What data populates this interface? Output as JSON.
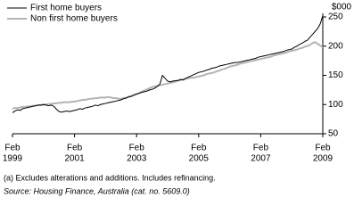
{
  "chart_data": {
    "type": "line",
    "y_unit": "$000",
    "footnote": "(a) Excludes alterations and additions. Includes refinancing.",
    "source": "Source: Housing Finance, Australia (cat. no. 5609.0)",
    "categories": [
      "Feb 1999",
      "Mar 1999",
      "Apr 1999",
      "May 1999",
      "Jun 1999",
      "Jul 1999",
      "Aug 1999",
      "Sep 1999",
      "Oct 1999",
      "Nov 1999",
      "Dec 1999",
      "Jan 2000",
      "Feb 2000",
      "Mar 2000",
      "Apr 2000",
      "May 2000",
      "Jun 2000",
      "Jul 2000",
      "Aug 2000",
      "Sep 2000",
      "Oct 2000",
      "Nov 2000",
      "Dec 2000",
      "Jan 2001",
      "Feb 2001",
      "Mar 2001",
      "Apr 2001",
      "May 2001",
      "Jun 2001",
      "Jul 2001",
      "Aug 2001",
      "Sep 2001",
      "Oct 2001",
      "Nov 2001",
      "Dec 2001",
      "Jan 2002",
      "Feb 2002",
      "Mar 2002",
      "Apr 2002",
      "May 2002",
      "Jun 2002",
      "Jul 2002",
      "Aug 2002",
      "Sep 2002",
      "Oct 2002",
      "Nov 2002",
      "Dec 2002",
      "Jan 2003",
      "Feb 2003",
      "Mar 2003",
      "Apr 2003",
      "May 2003",
      "Jun 2003",
      "Jul 2003",
      "Aug 2003",
      "Sep 2003",
      "Oct 2003",
      "Nov 2003",
      "Dec 2003",
      "Jan 2004",
      "Feb 2004",
      "Mar 2004",
      "Apr 2004",
      "May 2004",
      "Jun 2004",
      "Jul 2004",
      "Aug 2004",
      "Sep 2004",
      "Oct 2004",
      "Nov 2004",
      "Dec 2004",
      "Jan 2005",
      "Feb 2005",
      "Mar 2005",
      "Apr 2005",
      "May 2005",
      "Jun 2005",
      "Jul 2005",
      "Aug 2005",
      "Sep 2005",
      "Oct 2005",
      "Nov 2005",
      "Dec 2005",
      "Jan 2006",
      "Feb 2006",
      "Mar 2006",
      "Apr 2006",
      "May 2006",
      "Jun 2006",
      "Jul 2006",
      "Aug 2006",
      "Sep 2006",
      "Oct 2006",
      "Nov 2006",
      "Dec 2006",
      "Jan 2007",
      "Feb 2007",
      "Mar 2007",
      "Apr 2007",
      "May 2007",
      "Jun 2007",
      "Jul 2007",
      "Aug 2007",
      "Sep 2007",
      "Oct 2007",
      "Nov 2007",
      "Dec 2007",
      "Jan 2008",
      "Feb 2008",
      "Mar 2008",
      "Apr 2008",
      "May 2008",
      "Jun 2008",
      "Jul 2008",
      "Aug 2008",
      "Sep 2008",
      "Oct 2008",
      "Nov 2008",
      "Dec 2008",
      "Jan 2009",
      "Feb 2009"
    ],
    "xticks": [
      {
        "value": "Feb 1999",
        "label": [
          "Feb",
          "1999"
        ]
      },
      {
        "value": "Feb 2001",
        "label": [
          "Feb",
          "2001"
        ]
      },
      {
        "value": "Feb 2003",
        "label": [
          "Feb",
          "2003"
        ]
      },
      {
        "value": "Feb 2005",
        "label": [
          "Feb",
          "2005"
        ]
      },
      {
        "value": "Feb 2007",
        "label": [
          "Feb",
          "2007"
        ]
      },
      {
        "value": "Feb 2009",
        "label": [
          "Feb",
          "2009"
        ]
      }
    ],
    "series": [
      {
        "name": "First home buyers",
        "color": "#000000",
        "width": 1,
        "values": [
          86,
          89,
          91,
          90,
          93,
          94,
          95,
          96,
          97,
          98,
          99,
          99,
          100,
          99,
          98,
          99,
          97,
          92,
          88,
          87,
          88,
          89,
          88,
          89,
          90,
          91,
          93,
          92,
          94,
          95,
          96,
          97,
          99,
          98,
          100,
          101,
          102,
          103,
          104,
          105,
          106,
          107,
          108,
          110,
          111,
          113,
          114,
          116,
          118,
          119,
          121,
          122,
          123,
          125,
          126,
          128,
          131,
          135,
          150,
          145,
          140,
          139,
          140,
          141,
          141,
          143,
          142,
          145,
          147,
          149,
          151,
          153,
          155,
          156,
          157,
          159,
          160,
          162,
          163,
          164,
          166,
          167,
          168,
          169,
          170,
          171,
          172,
          172,
          173,
          174,
          175,
          176,
          177,
          178,
          179,
          181,
          182,
          183,
          184,
          185,
          186,
          187,
          188,
          189,
          190,
          191,
          193,
          194,
          195,
          198,
          200,
          203,
          205,
          208,
          210,
          215,
          220,
          225,
          230,
          238,
          252
        ]
      },
      {
        "name": "Non first home buyers",
        "color": "#b4b4b4",
        "width": 2,
        "values": [
          93,
          94,
          94,
          95,
          96,
          96,
          97,
          97,
          98,
          98,
          99,
          99,
          100,
          100,
          101,
          101,
          102,
          102,
          103,
          103,
          104,
          104,
          104,
          105,
          105,
          106,
          107,
          108,
          108,
          109,
          110,
          110,
          111,
          111,
          112,
          112,
          112,
          113,
          112,
          111,
          111,
          110,
          110,
          111,
          112,
          114,
          115,
          117,
          118,
          120,
          122,
          124,
          126,
          128,
          130,
          131,
          132,
          133,
          134,
          135,
          136,
          137,
          138,
          139,
          141,
          142,
          143,
          144,
          145,
          146,
          146,
          147,
          148,
          149,
          150,
          152,
          153,
          154,
          155,
          157,
          158,
          160,
          161,
          163,
          165,
          166,
          167,
          168,
          170,
          171,
          172,
          173,
          174,
          175,
          176,
          177,
          178,
          179,
          180,
          181,
          182,
          184,
          185,
          186,
          187,
          188,
          189,
          191,
          192,
          193,
          194,
          196,
          197,
          199,
          200,
          202,
          205,
          207,
          204,
          201,
          198
        ]
      }
    ],
    "ylim": [
      50,
      250
    ],
    "yticks": [
      50,
      100,
      150,
      200,
      250
    ],
    "y_axis_side": "right",
    "grid": false,
    "legend": "top-left"
  }
}
